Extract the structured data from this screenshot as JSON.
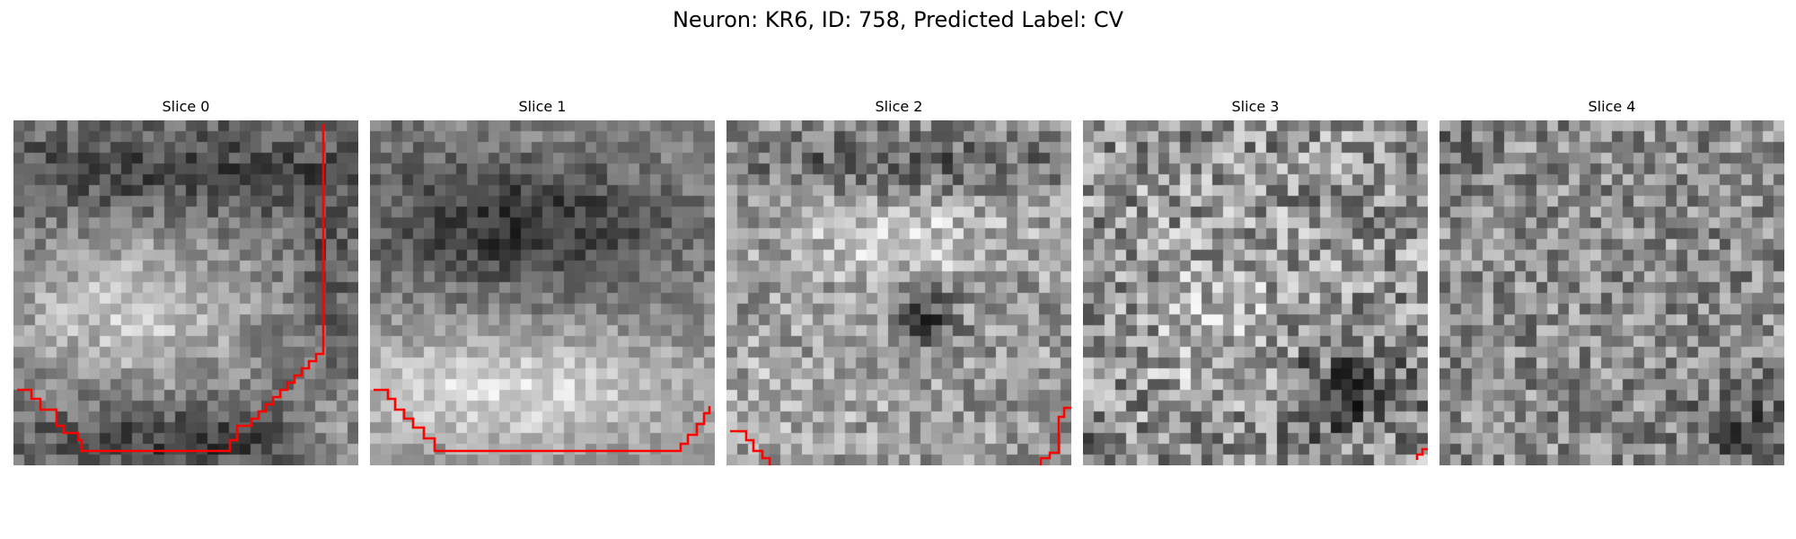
{
  "figure": {
    "suptitle": "Neuron: KR6, ID: 758, Predicted Label: CV"
  },
  "slices": [
    {
      "title": "Slice 0",
      "contour_color": "#ff0000"
    },
    {
      "title": "Slice 1",
      "contour_color": "#ff0000"
    },
    {
      "title": "Slice 2",
      "contour_color": "#ff0000"
    },
    {
      "title": "Slice 3",
      "contour_color": "#ff0000"
    },
    {
      "title": "Slice 4",
      "contour_color": "#ff0000"
    }
  ],
  "colormap": "gray"
}
